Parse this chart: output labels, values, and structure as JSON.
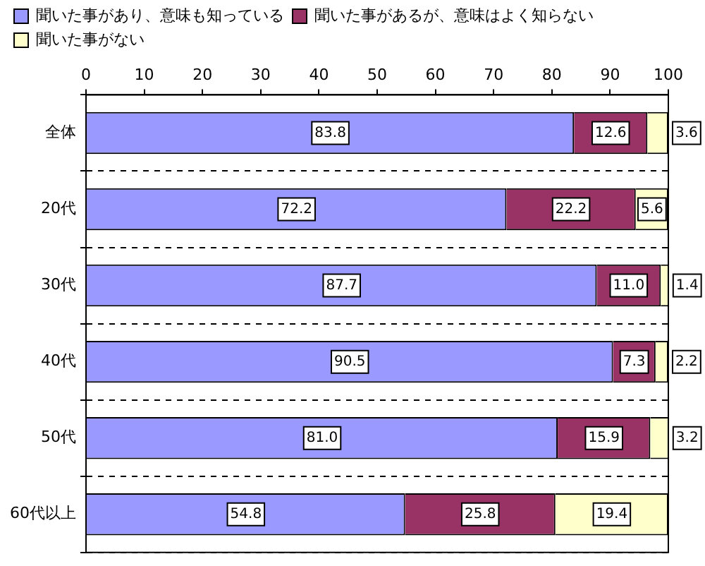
{
  "chart_data": {
    "type": "bar",
    "orientation": "horizontal",
    "stacked": true,
    "categories": [
      "全体",
      "20代",
      "30代",
      "40代",
      "50代",
      "60代以上"
    ],
    "series": [
      {
        "name": "聞いた事があり、意味も知っている",
        "color": "#9999ff",
        "values": [
          83.8,
          72.2,
          87.7,
          90.5,
          81.0,
          54.8
        ],
        "value_labels": [
          "83.8",
          "72.2",
          "87.7",
          "90.5",
          "81.0",
          "54.8"
        ]
      },
      {
        "name": "聞いた事があるが、意味はよく知らない",
        "color": "#993366",
        "values": [
          12.6,
          22.2,
          11.0,
          7.3,
          15.9,
          25.8
        ],
        "value_labels": [
          "12.6",
          "22.2",
          "11.0",
          "7.3",
          "15.9",
          "25.8"
        ]
      },
      {
        "name": "聞いた事がない",
        "color": "#ffffcc",
        "values": [
          3.6,
          5.6,
          1.4,
          2.2,
          3.2,
          19.4
        ],
        "value_labels": [
          "3.6",
          "5.6",
          "1.4",
          "2.2",
          "3.2",
          "19.4"
        ]
      }
    ],
    "xlim": [
      0,
      100
    ],
    "xticks": [
      0,
      10,
      20,
      30,
      40,
      50,
      60,
      70,
      80,
      90,
      100
    ],
    "grid": "y",
    "legend": "top"
  }
}
